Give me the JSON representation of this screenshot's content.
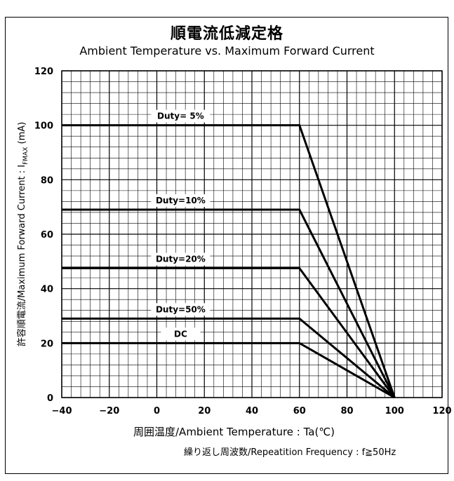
{
  "chart_data": {
    "type": "line",
    "title": "順電流低減定格",
    "subtitle": "Ambient Temperature vs. Maximum Forward Current",
    "xlabel": "周囲温度/Ambient Temperature : Ta(℃)",
    "ylabel": "許容順電流/Maximum Forward Current : IFMAX (mA)",
    "note": "繰り返し周波数/Repeatition Frequency : f≧50Hz",
    "xlim": [
      -40,
      120
    ],
    "ylim": [
      0,
      120
    ],
    "xticks": [
      -40,
      -20,
      0,
      20,
      40,
      60,
      80,
      100,
      120
    ],
    "yticks": [
      0,
      20,
      40,
      60,
      80,
      100,
      120
    ],
    "grid": true,
    "series": [
      {
        "name": "Duty= 5%",
        "x": [
          -40,
          60,
          100
        ],
        "y": [
          100,
          100,
          0
        ]
      },
      {
        "name": "Duty=10%",
        "x": [
          -40,
          60,
          100
        ],
        "y": [
          69,
          69,
          0
        ]
      },
      {
        "name": "Duty=20%",
        "x": [
          -40,
          60,
          100
        ],
        "y": [
          47.5,
          47.5,
          0
        ]
      },
      {
        "name": "Duty=50%",
        "x": [
          -40,
          60,
          100
        ],
        "y": [
          29,
          29,
          0
        ]
      },
      {
        "name": "DC",
        "x": [
          -40,
          60,
          100
        ],
        "y": [
          20,
          20,
          0
        ]
      }
    ]
  }
}
